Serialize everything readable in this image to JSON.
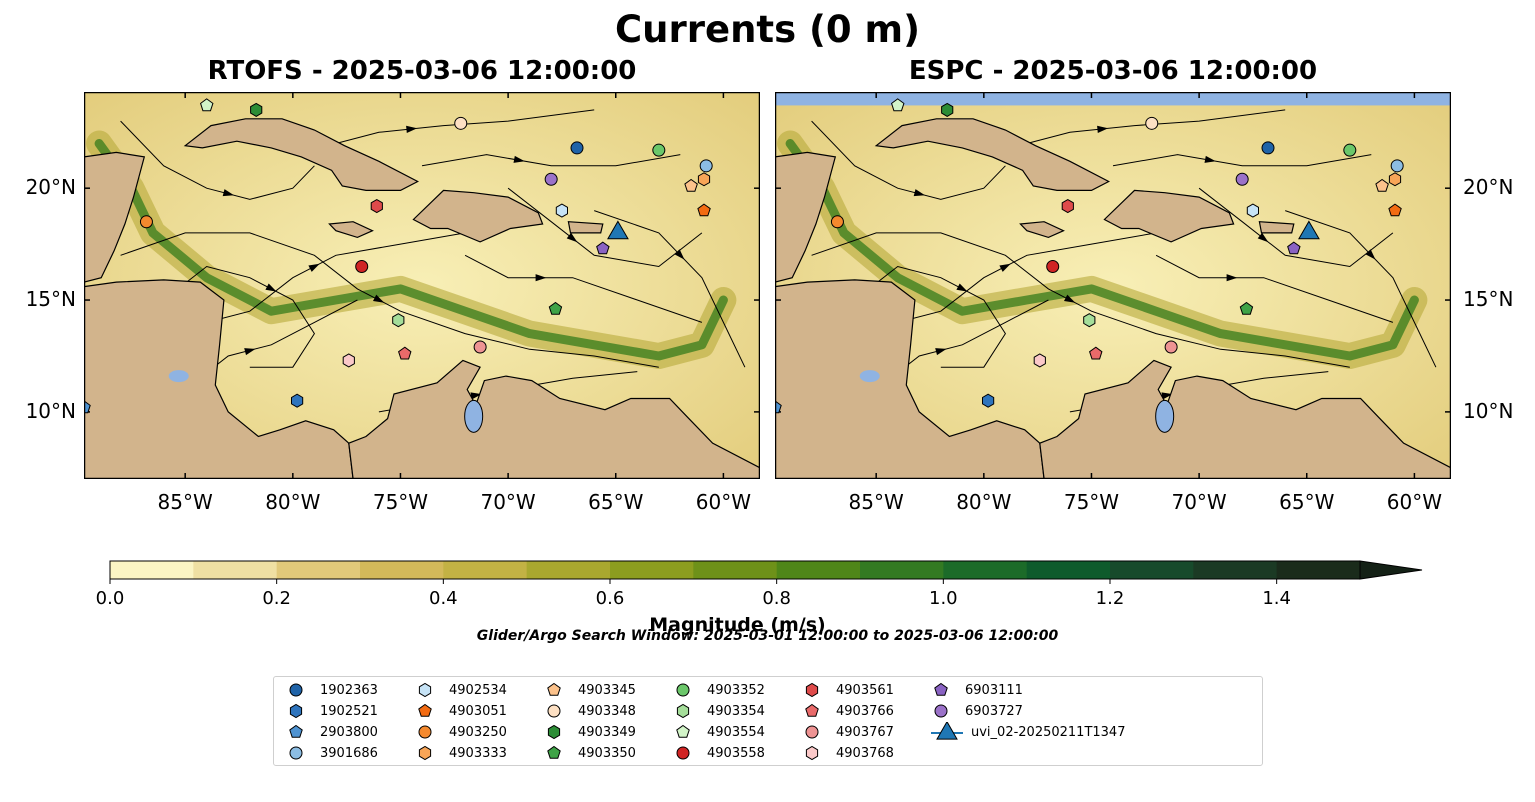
{
  "figure": {
    "title": "Currents (0 m)",
    "search_window": "Glider/Argo Search Window: 2025-03-01 12:00:00 to 2025-03-06 12:00:00"
  },
  "panels": [
    {
      "id": "rtofs",
      "title": "RTOFS - 2025-03-06 12:00:00"
    },
    {
      "id": "espc",
      "title": "ESPC - 2025-03-06 12:00:00"
    }
  ],
  "axes": {
    "lon_ticks": [
      "85°W",
      "80°W",
      "75°W",
      "70°W",
      "65°W",
      "60°W"
    ],
    "lon_values": [
      -85,
      -80,
      -75,
      -70,
      -65,
      -60
    ],
    "lat_ticks": [
      "20°N",
      "15°N",
      "10°N"
    ],
    "lat_values": [
      20,
      15,
      10
    ],
    "lon_range": [
      -89.7,
      -58.3
    ],
    "lat_range": [
      7.0,
      24.3
    ]
  },
  "colorbar": {
    "label": "Magnitude (m/s)",
    "ticks": [
      "0.0",
      "0.2",
      "0.4",
      "0.6",
      "0.8",
      "1.0",
      "1.2",
      "1.4"
    ],
    "tick_values": [
      0.0,
      0.2,
      0.4,
      0.6,
      0.8,
      1.0,
      1.2,
      1.4
    ],
    "range": [
      0.0,
      1.5
    ],
    "extend": "max",
    "step": 0.1,
    "colors": [
      "#fbf5c4",
      "#efe0a3",
      "#e1c97a",
      "#d3b95a",
      "#c3b244",
      "#a9a82f",
      "#8c9d1f",
      "#6e9119",
      "#4f8619",
      "#337a22",
      "#1c6b29",
      "#0e5b2c",
      "#174a2b",
      "#1b3a24",
      "#1a2b1b",
      "#142116"
    ]
  },
  "legend": {
    "items": [
      {
        "label": "1902363",
        "marker": "circle",
        "color": "#1f63a8"
      },
      {
        "label": "1902521",
        "marker": "hexagon",
        "color": "#2e74bd"
      },
      {
        "label": "2903800",
        "marker": "pentagon",
        "color": "#4f93d1"
      },
      {
        "label": "3901686",
        "marker": "circle",
        "color": "#8cbde3"
      },
      {
        "label": "4902534",
        "marker": "hexagon",
        "color": "#c6e3f6"
      },
      {
        "label": "4903051",
        "marker": "pentagon",
        "color": "#f36b12"
      },
      {
        "label": "4903250",
        "marker": "circle",
        "color": "#f4892e"
      },
      {
        "label": "4903333",
        "marker": "hexagon",
        "color": "#f8a557"
      },
      {
        "label": "4903345",
        "marker": "pentagon",
        "color": "#fcc28b"
      },
      {
        "label": "4903348",
        "marker": "circle",
        "color": "#fde0c3"
      },
      {
        "label": "4903349",
        "marker": "hexagon",
        "color": "#2c8d36"
      },
      {
        "label": "4903350",
        "marker": "pentagon",
        "color": "#3fa347"
      },
      {
        "label": "4903352",
        "marker": "circle",
        "color": "#6bc76a"
      },
      {
        "label": "4903354",
        "marker": "hexagon",
        "color": "#a5de9a"
      },
      {
        "label": "4903554",
        "marker": "pentagon",
        "color": "#d2f4c8"
      },
      {
        "label": "4903558",
        "marker": "circle",
        "color": "#d02424"
      },
      {
        "label": "4903561",
        "marker": "hexagon",
        "color": "#df4b4b"
      },
      {
        "label": "4903766",
        "marker": "pentagon",
        "color": "#e96a6a"
      },
      {
        "label": "4903767",
        "marker": "circle",
        "color": "#ee9393"
      },
      {
        "label": "4903768",
        "marker": "hexagon",
        "color": "#fbc9c9"
      },
      {
        "label": "6903111",
        "marker": "pentagon",
        "color": "#8a63c3"
      },
      {
        "label": "6903727",
        "marker": "circle",
        "color": "#9b72c9"
      },
      {
        "label": "uvi_02-20250211T1347",
        "marker": "triangle-line",
        "color": "#1f77b4"
      }
    ]
  },
  "markers": {
    "rtofs": [
      {
        "id": "1902363",
        "lon": -66.8,
        "lat": 21.8
      },
      {
        "id": "1902521",
        "lon": -79.8,
        "lat": 10.5
      },
      {
        "id": "2903800",
        "lon": -89.7,
        "lat": 10.2
      },
      {
        "id": "3901686",
        "lon": -60.8,
        "lat": 21.0
      },
      {
        "id": "4902534",
        "lon": -67.5,
        "lat": 19.0
      },
      {
        "id": "4903051",
        "lon": -60.9,
        "lat": 19.0
      },
      {
        "id": "4903250",
        "lon": -86.8,
        "lat": 18.5
      },
      {
        "id": "4903333",
        "lon": -60.9,
        "lat": 20.4
      },
      {
        "id": "4903345",
        "lon": -61.5,
        "lat": 20.1
      },
      {
        "id": "4903348",
        "lon": -72.2,
        "lat": 22.9
      },
      {
        "id": "4903349",
        "lon": -81.7,
        "lat": 23.5
      },
      {
        "id": "4903350",
        "lon": -67.8,
        "lat": 14.6
      },
      {
        "id": "4903352",
        "lon": -63.0,
        "lat": 21.7
      },
      {
        "id": "4903354",
        "lon": -75.1,
        "lat": 14.1
      },
      {
        "id": "4903554",
        "lon": -84.0,
        "lat": 23.7
      },
      {
        "id": "4903558",
        "lon": -76.8,
        "lat": 16.5
      },
      {
        "id": "4903561",
        "lon": -76.1,
        "lat": 19.2
      },
      {
        "id": "4903766",
        "lon": -74.8,
        "lat": 12.6
      },
      {
        "id": "4903767",
        "lon": -71.3,
        "lat": 12.9
      },
      {
        "id": "4903768",
        "lon": -77.4,
        "lat": 12.3
      },
      {
        "id": "6903111",
        "lon": -65.6,
        "lat": 17.3
      },
      {
        "id": "6903727",
        "lon": -68.0,
        "lat": 20.4
      },
      {
        "id": "uvi_02-20250211T1347",
        "lon": -64.9,
        "lat": 18.1
      }
    ],
    "espc": [
      {
        "id": "1902363",
        "lon": -66.8,
        "lat": 21.8
      },
      {
        "id": "1902521",
        "lon": -79.8,
        "lat": 10.5
      },
      {
        "id": "2903800",
        "lon": -89.7,
        "lat": 10.2
      },
      {
        "id": "3901686",
        "lon": -60.8,
        "lat": 21.0
      },
      {
        "id": "4902534",
        "lon": -67.5,
        "lat": 19.0
      },
      {
        "id": "4903051",
        "lon": -60.9,
        "lat": 19.0
      },
      {
        "id": "4903250",
        "lon": -86.8,
        "lat": 18.5
      },
      {
        "id": "4903333",
        "lon": -60.9,
        "lat": 20.4
      },
      {
        "id": "4903345",
        "lon": -61.5,
        "lat": 20.1
      },
      {
        "id": "4903348",
        "lon": -72.2,
        "lat": 22.9
      },
      {
        "id": "4903349",
        "lon": -81.7,
        "lat": 23.5
      },
      {
        "id": "4903350",
        "lon": -67.8,
        "lat": 14.6
      },
      {
        "id": "4903352",
        "lon": -63.0,
        "lat": 21.7
      },
      {
        "id": "4903354",
        "lon": -75.1,
        "lat": 14.1
      },
      {
        "id": "4903554",
        "lon": -84.0,
        "lat": 23.7
      },
      {
        "id": "4903558",
        "lon": -76.8,
        "lat": 16.5
      },
      {
        "id": "4903561",
        "lon": -76.1,
        "lat": 19.2
      },
      {
        "id": "4903766",
        "lon": -74.8,
        "lat": 12.6
      },
      {
        "id": "4903767",
        "lon": -71.3,
        "lat": 12.9
      },
      {
        "id": "4903768",
        "lon": -77.4,
        "lat": 12.3
      },
      {
        "id": "6903111",
        "lon": -65.6,
        "lat": 17.3
      },
      {
        "id": "6903727",
        "lon": -68.0,
        "lat": 20.4
      },
      {
        "id": "uvi_02-20250211T1347",
        "lon": -64.9,
        "lat": 18.1
      }
    ]
  },
  "map_colors": {
    "land": "#d2b48c",
    "water_body": "#8fb3e2",
    "ocean_low": "#f7edb0",
    "ocean_jet": "#3f7f1f",
    "streamline": "#000000",
    "rivers": "#9cb6cc"
  }
}
